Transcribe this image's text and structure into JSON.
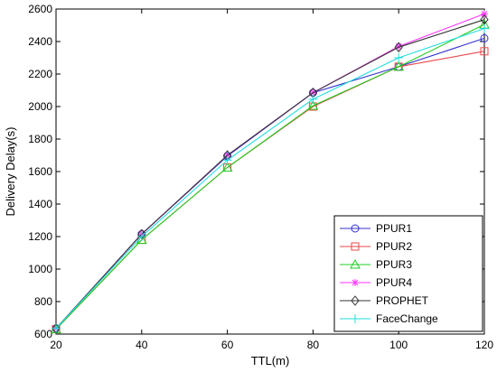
{
  "chart_data": {
    "type": "line",
    "xlabel": "TTL(m)",
    "ylabel": "Delivery Delay(s)",
    "x": [
      20,
      40,
      60,
      80,
      100,
      120
    ],
    "xlim": [
      20,
      120
    ],
    "ylim": [
      600,
      2600
    ],
    "xticks": [
      "20",
      "40",
      "60",
      "80",
      "100",
      "120"
    ],
    "yticks": [
      "600",
      "800",
      "1000",
      "1200",
      "1400",
      "1600",
      "1800",
      "2000",
      "2200",
      "2400",
      "2600"
    ],
    "grid": false,
    "legend_position": "bottom-right",
    "series": [
      {
        "name": "PPUR1",
        "color": "#3333cc",
        "marker": "circle",
        "values": [
          635,
          1215,
          1695,
          2085,
          2245,
          2420
        ]
      },
      {
        "name": "PPUR2",
        "color": "#e84a4a",
        "marker": "square",
        "values": [
          630,
          1180,
          1625,
          2000,
          2245,
          2340
        ]
      },
      {
        "name": "PPUR3",
        "color": "#22cc22",
        "marker": "triangle",
        "values": [
          630,
          1180,
          1625,
          2005,
          2245,
          2505
        ]
      },
      {
        "name": "PPUR4",
        "color": "#ff33ff",
        "marker": "star",
        "values": [
          635,
          1215,
          1700,
          2085,
          2370,
          2570
        ]
      },
      {
        "name": "PROPHET",
        "color": "#333333",
        "marker": "diamond",
        "values": [
          635,
          1215,
          1700,
          2085,
          2365,
          2535
        ]
      },
      {
        "name": "FaceChange",
        "color": "#22dddd",
        "marker": "plus",
        "values": [
          635,
          1200,
          1670,
          2045,
          2300,
          2480
        ]
      }
    ]
  }
}
